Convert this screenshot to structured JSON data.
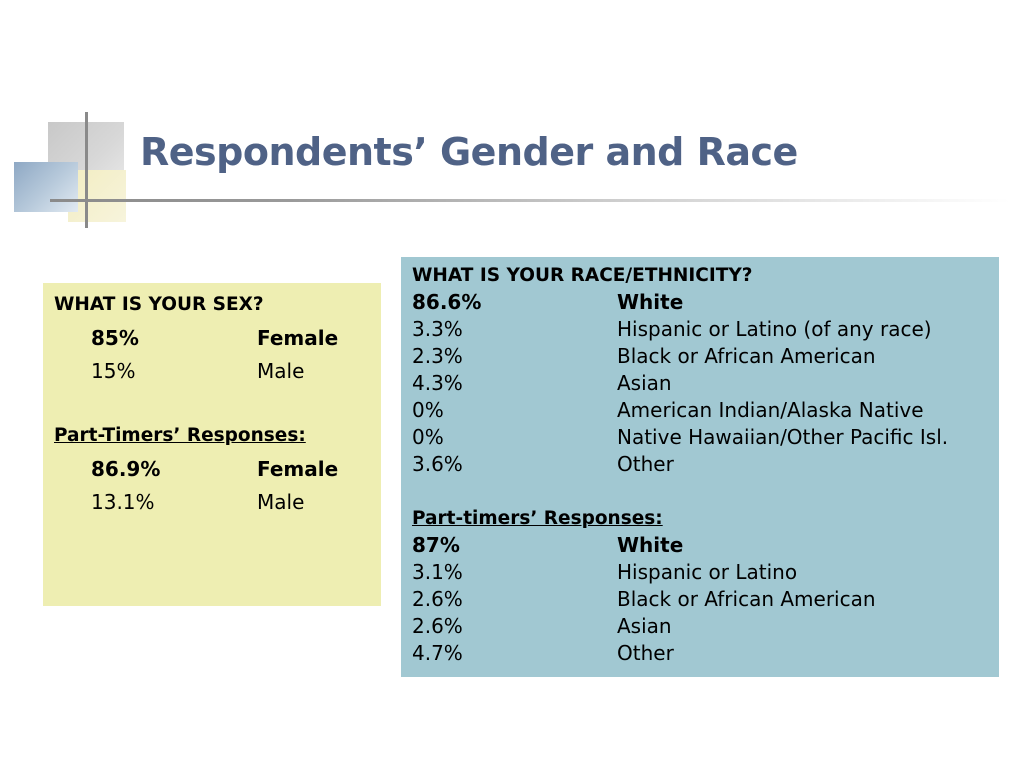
{
  "slide": {
    "title": "Respondents’ Gender and Race"
  },
  "sex_panel": {
    "heading": "WHAT IS YOUR SEX?",
    "rows": [
      {
        "pct": "85%",
        "label": "Female"
      },
      {
        "pct": "15%",
        "label": "Male"
      }
    ],
    "part_timers_heading": "Part-Timers’ Responses:",
    "part_timers_rows": [
      {
        "pct": "86.9%",
        "label": "Female"
      },
      {
        "pct": "13.1%",
        "label": "Male"
      }
    ]
  },
  "race_panel": {
    "heading": "WHAT IS YOUR RACE/ETHNICITY?",
    "rows": [
      {
        "pct": "86.6%",
        "label": "White"
      },
      {
        "pct": "3.3%",
        "label": "Hispanic or Latino (of any race)"
      },
      {
        "pct": "2.3%",
        "label": "Black or African American"
      },
      {
        "pct": "4.3%",
        "label": "Asian"
      },
      {
        "pct": "0%",
        "label": "American Indian/Alaska Native"
      },
      {
        "pct": "0%",
        "label": "Native Hawaiian/Other Pacific Isl."
      },
      {
        "pct": "3.6%",
        "label": "Other"
      }
    ],
    "part_timers_heading": "Part-timers’ Responses:",
    "part_timers_rows": [
      {
        "pct": "87%",
        "label": "White"
      },
      {
        "pct": "3.1%",
        "label": "Hispanic or Latino"
      },
      {
        "pct": "2.6%",
        "label": "Black or African American"
      },
      {
        "pct": "2.6%",
        "label": "Asian"
      },
      {
        "pct": "4.7%",
        "label": "Other"
      }
    ]
  },
  "colors": {
    "title": "#4f6286",
    "sex_panel_bg": "#eeeeb2",
    "race_panel_bg": "#a1c8d2"
  }
}
